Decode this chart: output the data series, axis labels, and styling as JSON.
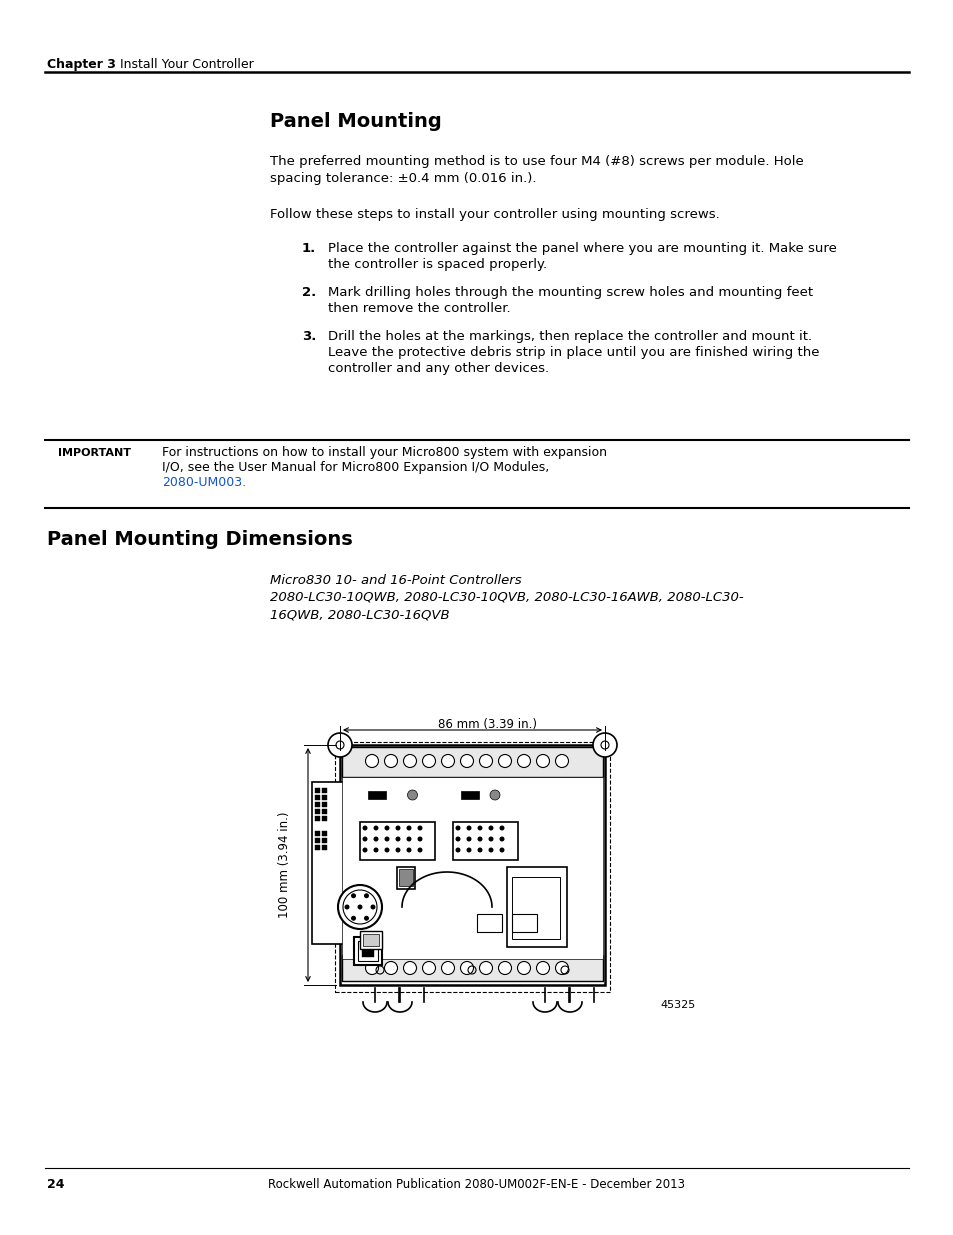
{
  "page_number": "24",
  "footer_text": "Rockwell Automation Publication 2080-UM002F-EN-E - December 2013",
  "header_chapter": "Chapter 3",
  "header_title": "Install Your Controller",
  "section1_title": "Panel Mounting",
  "para1_line1": "The preferred mounting method is to use four M4 (#8) screws per module. Hole",
  "para1_line2": "spacing tolerance: ±0.4 mm (0.016 in.).",
  "para2": "Follow these steps to install your controller using mounting screws.",
  "step1_num": "1.",
  "step1_line1": "Place the controller against the panel where you are mounting it. Make sure",
  "step1_line2": "the controller is spaced properly.",
  "step2_num": "2.",
  "step2_line1": "Mark drilling holes through the mounting screw holes and mounting feet",
  "step2_line2": "then remove the controller.",
  "step3_num": "3.",
  "step3_line1": "Drill the holes at the markings, then replace the controller and mount it.",
  "step3_line2": "Leave the protective debris strip in place until you are finished wiring the",
  "step3_line3": "controller and any other devices.",
  "important_label": "IMPORTANT",
  "imp_line1": "For instructions on how to install your Micro800 system with expansion",
  "imp_line2": "I/O, see the User Manual for Micro800 Expansion I/O Modules,",
  "imp_link": "2080-UM003.",
  "section2_title": "Panel Mounting Dimensions",
  "sub1": "Micro830 10- and 16-Point Controllers",
  "sub2_line1": "2080-LC30-10QWB, 2080-LC30-10QVB, 2080-LC30-16AWB, 2080-LC30-",
  "sub2_line2": "16QWB, 2080-LC30-16QVB",
  "dim_top_label": "86 mm (3.39 in.)",
  "dim_left_label": "100 mm (3.94 in.)",
  "fig_number": "45325",
  "bg_color": "#ffffff",
  "text_color": "#000000",
  "link_color": "#1155cc"
}
